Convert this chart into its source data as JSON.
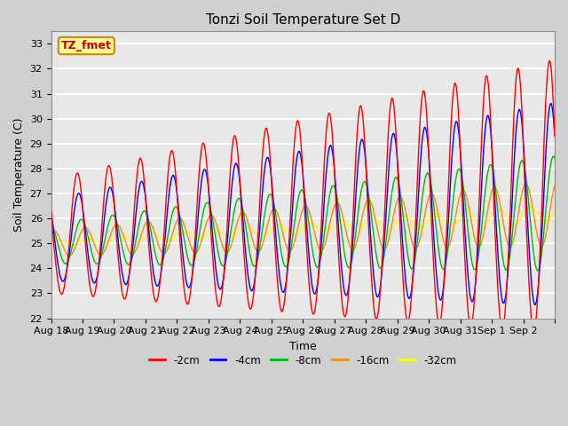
{
  "title": "Tonzi Soil Temperature Set D",
  "xlabel": "Time",
  "ylabel": "Soil Temperature (C)",
  "ylim": [
    22.0,
    33.5
  ],
  "yticks": [
    22.0,
    23.0,
    24.0,
    25.0,
    26.0,
    27.0,
    28.0,
    29.0,
    30.0,
    31.0,
    32.0,
    33.0
  ],
  "series": [
    {
      "label": "-2cm",
      "color": "#ff0000"
    },
    {
      "label": "-4cm",
      "color": "#0000ff"
    },
    {
      "label": "-8cm",
      "color": "#00bb00"
    },
    {
      "label": "-16cm",
      "color": "#ff8800"
    },
    {
      "label": "-32cm",
      "color": "#ffff00"
    }
  ],
  "annotation_text": "TZ_fmet",
  "annotation_color": "#cc0000",
  "annotation_bg": "#ffff99",
  "annotation_border": "#cc8800",
  "n_days": 16,
  "x_labels": [
    "Aug 18",
    "Aug 19",
    "Aug 20",
    "Aug 21",
    "Aug 22",
    "Aug 23",
    "Aug 24",
    "Aug 25",
    "Aug 26",
    "Aug 27",
    "Aug 28",
    "Aug 29",
    "Aug 30",
    "Aug 31",
    "Sep 1",
    "Sep 2"
  ],
  "fig_bg": "#d0d0d0",
  "plot_bg": "#e8e8e8",
  "grid_color": "#ffffff",
  "linewidth": 1.0
}
